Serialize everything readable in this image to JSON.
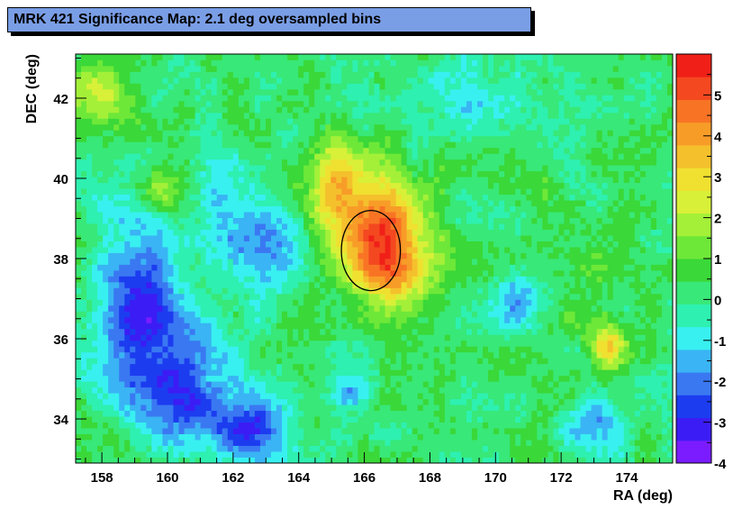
{
  "chart_data": {
    "type": "heatmap",
    "title": "MRK 421 Significance Map: 2.1 deg oversampled bins",
    "xlabel": "RA (deg)",
    "ylabel": "DEC (deg)",
    "xlim": [
      157.2,
      175.4
    ],
    "ylim": [
      32.9,
      43.1
    ],
    "x_ticks": [
      158,
      160,
      162,
      164,
      166,
      168,
      170,
      172,
      174
    ],
    "y_ticks": [
      34,
      36,
      38,
      40,
      42
    ],
    "colorbar": {
      "zlim": [
        -4,
        6
      ],
      "ticks": [
        -4,
        -3,
        -2,
        -1,
        0,
        1,
        2,
        3,
        4,
        5
      ],
      "colors": [
        "#7a1cff",
        "#3c1cf4",
        "#1c3cf0",
        "#3a78f2",
        "#3ab4f4",
        "#38f0f0",
        "#2ef0b0",
        "#38e878",
        "#3ad838",
        "#6ee838",
        "#a4f038",
        "#d8f038",
        "#f0e030",
        "#f4c02c",
        "#f89c28",
        "#f87424",
        "#f44820",
        "#f02018"
      ]
    },
    "grid": false,
    "features": [
      {
        "ra": 166.6,
        "dec": 38.5,
        "sigma_ra": 0.9,
        "sigma_dec": 1.0,
        "peak": 4.6
      },
      {
        "ra": 165.1,
        "dec": 39.8,
        "sigma_ra": 0.7,
        "sigma_dec": 0.9,
        "peak": 3.0
      },
      {
        "ra": 167.0,
        "dec": 37.5,
        "sigma_ra": 0.8,
        "sigma_dec": 0.6,
        "peak": 1.8
      },
      {
        "ra": 173.5,
        "dec": 35.8,
        "sigma_ra": 0.4,
        "sigma_dec": 0.4,
        "peak": 3.2
      },
      {
        "ra": 160.5,
        "dec": 35.0,
        "sigma_ra": 1.0,
        "sigma_dec": 1.2,
        "peak": -2.8
      },
      {
        "ra": 159.0,
        "dec": 37.0,
        "sigma_ra": 0.9,
        "sigma_dec": 1.5,
        "peak": -2.6
      },
      {
        "ra": 162.5,
        "dec": 33.8,
        "sigma_ra": 0.8,
        "sigma_dec": 0.6,
        "peak": -2.6
      },
      {
        "ra": 163.2,
        "dec": 38.3,
        "sigma_ra": 0.9,
        "sigma_dec": 0.8,
        "peak": -2.0
      },
      {
        "ra": 161.6,
        "dec": 39.5,
        "sigma_ra": 0.6,
        "sigma_dec": 0.7,
        "peak": -1.8
      },
      {
        "ra": 170.5,
        "dec": 37.0,
        "sigma_ra": 0.6,
        "sigma_dec": 0.5,
        "peak": -2.0
      },
      {
        "ra": 173.0,
        "dec": 33.8,
        "sigma_ra": 0.7,
        "sigma_dec": 0.5,
        "peak": -2.0
      },
      {
        "ra": 165.5,
        "dec": 34.6,
        "sigma_ra": 0.4,
        "sigma_dec": 0.3,
        "peak": -1.8
      },
      {
        "ra": 169.0,
        "dec": 42.0,
        "sigma_ra": 1.2,
        "sigma_dec": 0.7,
        "peak": -1.2
      },
      {
        "ra": 160.0,
        "dec": 39.6,
        "sigma_ra": 0.6,
        "sigma_dec": 0.5,
        "peak": 1.8
      },
      {
        "ra": 157.8,
        "dec": 42.2,
        "sigma_ra": 0.8,
        "sigma_dec": 0.6,
        "peak": 1.5
      },
      {
        "ra": 172.0,
        "dec": 38.0,
        "sigma_ra": 1.5,
        "sigma_dec": 1.2,
        "peak": 0.8
      }
    ],
    "source_marker": {
      "ra": 166.2,
      "dec": 38.2,
      "radius_ra": 0.9,
      "radius_dec": 1.0,
      "label": ""
    }
  }
}
